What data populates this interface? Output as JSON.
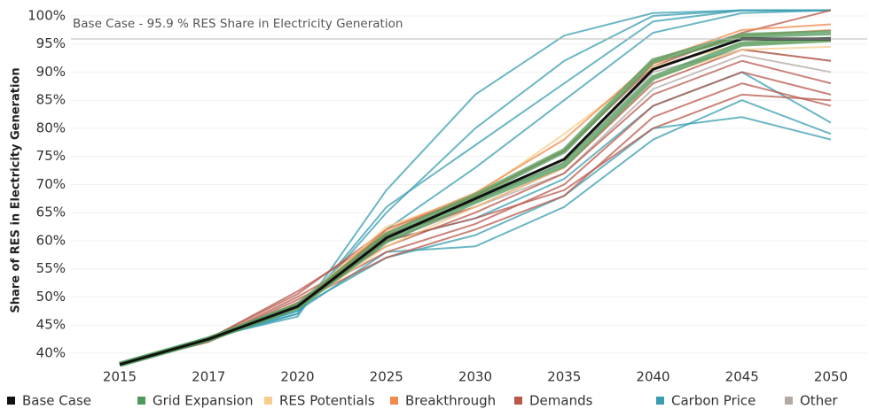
{
  "chart_data": {
    "type": "line",
    "y_label": "Share of RES in Electricity Generation",
    "categories": [
      "2015",
      "2017",
      "2020",
      "2025",
      "2030",
      "2035",
      "2040",
      "2045",
      "2050"
    ],
    "ylim": [
      37,
      101
    ],
    "yticks": [
      {
        "value": 40,
        "label": "40%"
      },
      {
        "value": 45,
        "label": "45%"
      },
      {
        "value": 50,
        "label": "50%"
      },
      {
        "value": 55,
        "label": "55%"
      },
      {
        "value": 60,
        "label": "60%"
      },
      {
        "value": 65,
        "label": "65%"
      },
      {
        "value": 70,
        "label": "70%"
      },
      {
        "value": 75,
        "label": "75%"
      },
      {
        "value": 80,
        "label": "80%"
      },
      {
        "value": 85,
        "label": "85%"
      },
      {
        "value": 90,
        "label": "90%"
      },
      {
        "value": 95,
        "label": "95%"
      },
      {
        "value": 100,
        "label": "100%"
      }
    ],
    "reference": {
      "value": 95.9,
      "label": "Base Case - 95.9 % RES Share in Electricity Generation"
    },
    "series": [
      {
        "name": "Base Case",
        "color": "#111111",
        "lines": [
          [
            38,
            42.5,
            48.3,
            60.5,
            67.5,
            74.5,
            90.5,
            95.9,
            95.9
          ]
        ]
      },
      {
        "name": "Grid Expansion",
        "color": "#4f9a5b",
        "lines": [
          [
            38,
            42.5,
            48.5,
            61,
            68,
            76,
            92,
            96.5,
            97
          ],
          [
            38,
            42.5,
            48.2,
            60,
            67,
            73.5,
            89,
            95,
            95.8
          ]
        ]
      },
      {
        "name": "RES Potentials",
        "color": "#f7cd8d",
        "lines": [
          [
            38,
            42.8,
            48.6,
            62.5,
            68,
            79,
            91,
            95,
            95.5
          ],
          [
            38,
            42.3,
            48,
            59,
            66,
            73,
            89,
            94,
            94.5
          ]
        ]
      },
      {
        "name": "Breakthrough",
        "color": "#f08a4b",
        "lines": [
          [
            38,
            42.7,
            48.5,
            62,
            68.5,
            78,
            92,
            97.5,
            98.5
          ],
          [
            38,
            42.6,
            48.4,
            61.5,
            68,
            76,
            91.5,
            96.5,
            97.5
          ]
        ]
      },
      {
        "name": "Demands",
        "color": "#b8594c",
        "lines": [
          [
            38,
            42,
            49,
            57,
            62,
            68,
            82,
            88,
            84
          ],
          [
            38,
            42.3,
            50,
            59,
            65,
            72,
            86,
            92,
            88
          ],
          [
            38,
            42.5,
            51,
            61,
            66,
            73,
            88,
            94,
            92
          ],
          [
            38,
            42.2,
            49.5,
            58,
            63,
            70,
            84,
            90,
            86
          ],
          [
            38,
            42.6,
            50.5,
            62,
            68,
            76,
            91,
            97,
            101
          ],
          [
            38,
            42.4,
            48,
            60,
            64,
            69,
            80,
            86,
            85
          ]
        ]
      },
      {
        "name": "Carbon Price",
        "color": "#3a9db0",
        "lines": [
          [
            38,
            42.8,
            46.5,
            69,
            86,
            96.5,
            100.5,
            101,
            101
          ],
          [
            38,
            42.8,
            47,
            65,
            80,
            92,
            100,
            101,
            101
          ],
          [
            38,
            42.8,
            47.5,
            62,
            73,
            85,
            97,
            100.5,
            101
          ],
          [
            38,
            42.5,
            47,
            66,
            77,
            88,
            99,
            101,
            101
          ],
          [
            38,
            42.5,
            47.5,
            58,
            59,
            66,
            78,
            85,
            79
          ],
          [
            38,
            42.5,
            48,
            57,
            61,
            68,
            80,
            82,
            78
          ],
          [
            38,
            42.6,
            48,
            60,
            64,
            71,
            84,
            90,
            81
          ]
        ]
      },
      {
        "name": "Other",
        "color": "#b3a9a5",
        "lines": [
          [
            38,
            42.5,
            48.5,
            61,
            67,
            74,
            90,
            94,
            92
          ],
          [
            38,
            42.4,
            48.3,
            60,
            66,
            72,
            87,
            93,
            90
          ]
        ]
      }
    ]
  }
}
